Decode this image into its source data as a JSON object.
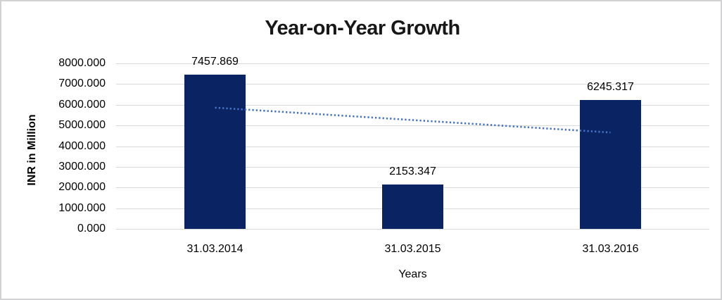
{
  "page": {
    "background": "#ffffff",
    "border_color": "#d2d2d5"
  },
  "chart_data": {
    "type": "bar",
    "title": "Year-on-Year Growth",
    "xlabel": "Years",
    "ylabel": "INR in Million",
    "categories": [
      "31.03.2014",
      "31.03.2015",
      "31.03.2016"
    ],
    "values": [
      7457.869,
      2153.347,
      6245.317
    ],
    "value_labels": [
      "7457.869",
      "2153.347",
      "6245.317"
    ],
    "ylim": [
      0,
      8000
    ],
    "y_ticks": [
      "8000.000",
      "7000.000",
      "6000.000",
      "5000.000",
      "4000.000",
      "3000.000",
      "2000.000",
      "1000.000",
      "0.000"
    ],
    "grid": true,
    "legend": "none",
    "bar_color": "#0a2463",
    "trendline": {
      "style": "dotted",
      "color": "#4472c4",
      "start_category_index": 0,
      "end_category_index": 2,
      "start_value": 5860,
      "end_value": 4660
    }
  }
}
